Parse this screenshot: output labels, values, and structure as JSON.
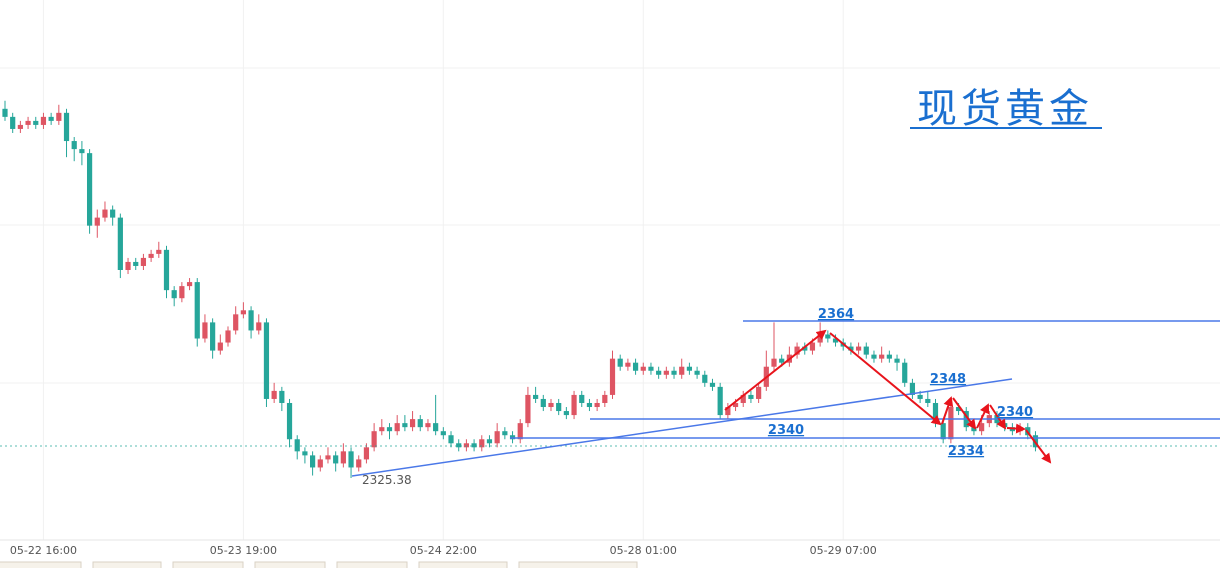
{
  "chart_data": {
    "type": "candlestick",
    "title": "现货黄金",
    "up_color": "#de5563",
    "down_color": "#26a69a",
    "ylim": [
      2310,
      2444
    ],
    "categories": [
      null,
      null,
      null,
      null,
      null,
      "05-22 16:00",
      null,
      null,
      null,
      null,
      null,
      null,
      null,
      null,
      null,
      null,
      null,
      null,
      null,
      null,
      null,
      null,
      null,
      null,
      null,
      null,
      null,
      null,
      null,
      null,
      null,
      "05-23 19:00",
      null,
      null,
      null,
      null,
      null,
      null,
      null,
      null,
      null,
      null,
      null,
      null,
      null,
      null,
      null,
      null,
      null,
      null,
      null,
      null,
      null,
      null,
      null,
      null,
      null,
      "05-24 22:00",
      null,
      null,
      null,
      null,
      null,
      null,
      null,
      null,
      null,
      null,
      null,
      null,
      null,
      null,
      null,
      null,
      null,
      null,
      null,
      null,
      null,
      null,
      null,
      null,
      null,
      "05-28 01:00",
      null,
      null,
      null,
      null,
      null,
      null,
      null,
      null,
      null,
      null,
      null,
      null,
      null,
      null,
      null,
      null,
      null,
      null,
      null,
      null,
      null,
      null,
      null,
      null,
      null,
      "05-29 07:00",
      null,
      null,
      null,
      null,
      null,
      null,
      null,
      null,
      null,
      null,
      null,
      null,
      null,
      null,
      null,
      null,
      null,
      null,
      null,
      null,
      null,
      null,
      null,
      null,
      null
    ],
    "values": [
      [
        2417,
        2419,
        2414,
        2415
      ],
      [
        2415,
        2416,
        2411,
        2412
      ],
      [
        2412,
        2414,
        2411,
        2413
      ],
      [
        2413,
        2415,
        2412,
        2414
      ],
      [
        2414,
        2415,
        2412,
        2413
      ],
      [
        2413,
        2416,
        2412,
        2415
      ],
      [
        2415,
        2416,
        2413,
        2414
      ],
      [
        2414,
        2418,
        2413,
        2416
      ],
      [
        2416,
        2417,
        2405,
        2409
      ],
      [
        2409,
        2410,
        2404,
        2407
      ],
      [
        2407,
        2409,
        2403,
        2406
      ],
      [
        2406,
        2407,
        2386,
        2388
      ],
      [
        2388,
        2392,
        2385,
        2390
      ],
      [
        2390,
        2394,
        2389,
        2392
      ],
      [
        2392,
        2393,
        2388,
        2390
      ],
      [
        2390,
        2391,
        2375,
        2377
      ],
      [
        2377,
        2380,
        2376,
        2379
      ],
      [
        2379,
        2380,
        2377,
        2378
      ],
      [
        2378,
        2381,
        2377,
        2380
      ],
      [
        2380,
        2382,
        2379,
        2381
      ],
      [
        2381,
        2384,
        2380,
        2382
      ],
      [
        2382,
        2383,
        2370,
        2372
      ],
      [
        2372,
        2373,
        2368,
        2370
      ],
      [
        2370,
        2374,
        2369,
        2373
      ],
      [
        2373,
        2375,
        2372,
        2374
      ],
      [
        2374,
        2375,
        2358,
        2360
      ],
      [
        2360,
        2366,
        2359,
        2364
      ],
      [
        2364,
        2365,
        2355,
        2357
      ],
      [
        2357,
        2361,
        2356,
        2359
      ],
      [
        2359,
        2363,
        2358,
        2362
      ],
      [
        2362,
        2368,
        2361,
        2366
      ],
      [
        2366,
        2369,
        2365,
        2367
      ],
      [
        2367,
        2368,
        2360,
        2362
      ],
      [
        2362,
        2366,
        2361,
        2364
      ],
      [
        2364,
        2365,
        2343,
        2345
      ],
      [
        2345,
        2349,
        2344,
        2347
      ],
      [
        2347,
        2348,
        2342,
        2344
      ],
      [
        2344,
        2345,
        2333,
        2335
      ],
      [
        2335,
        2336,
        2330,
        2332
      ],
      [
        2332,
        2333,
        2329,
        2331
      ],
      [
        2331,
        2332,
        2326,
        2328
      ],
      [
        2328,
        2331,
        2327,
        2330
      ],
      [
        2330,
        2333,
        2329,
        2331
      ],
      [
        2331,
        2332,
        2327,
        2329
      ],
      [
        2329,
        2334,
        2328,
        2332
      ],
      [
        2332,
        2333,
        2325.38,
        2328
      ],
      [
        2328,
        2331,
        2327,
        2330
      ],
      [
        2330,
        2334,
        2329,
        2333
      ],
      [
        2333,
        2339,
        2332,
        2337
      ],
      [
        2337,
        2340,
        2336,
        2338
      ],
      [
        2338,
        2339,
        2335,
        2337
      ],
      [
        2337,
        2341,
        2336,
        2339
      ],
      [
        2339,
        2341,
        2337,
        2338
      ],
      [
        2338,
        2342,
        2337,
        2340
      ],
      [
        2340,
        2341,
        2337,
        2338
      ],
      [
        2338,
        2340,
        2337,
        2339
      ],
      [
        2339,
        2346,
        2336,
        2337
      ],
      [
        2337,
        2338,
        2335,
        2336
      ],
      [
        2336,
        2337,
        2333,
        2334
      ],
      [
        2334,
        2335,
        2332,
        2333
      ],
      [
        2333,
        2335,
        2332,
        2334
      ],
      [
        2334,
        2335,
        2332,
        2333
      ],
      [
        2333,
        2336,
        2332,
        2335
      ],
      [
        2335,
        2336,
        2333,
        2334
      ],
      [
        2334,
        2339,
        2333,
        2337
      ],
      [
        2337,
        2338,
        2335,
        2336
      ],
      [
        2336,
        2337,
        2334,
        2335
      ],
      [
        2335,
        2340,
        2334,
        2339
      ],
      [
        2339,
        2348,
        2338,
        2346
      ],
      [
        2346,
        2348,
        2344,
        2345
      ],
      [
        2345,
        2346,
        2342,
        2343
      ],
      [
        2343,
        2345,
        2342,
        2344
      ],
      [
        2344,
        2345,
        2341,
        2342
      ],
      [
        2342,
        2343,
        2340,
        2341
      ],
      [
        2341,
        2347,
        2340,
        2346
      ],
      [
        2346,
        2347,
        2343,
        2344
      ],
      [
        2344,
        2345,
        2342,
        2343
      ],
      [
        2343,
        2345,
        2342,
        2344
      ],
      [
        2344,
        2347,
        2343,
        2346
      ],
      [
        2346,
        2357,
        2345,
        2355
      ],
      [
        2355,
        2356,
        2352,
        2353
      ],
      [
        2353,
        2355,
        2352,
        2354
      ],
      [
        2354,
        2355,
        2351,
        2352
      ],
      [
        2352,
        2354,
        2351,
        2353
      ],
      [
        2353,
        2354,
        2351,
        2352
      ],
      [
        2352,
        2353,
        2350,
        2351
      ],
      [
        2351,
        2353,
        2350,
        2352
      ],
      [
        2352,
        2353,
        2350,
        2351
      ],
      [
        2351,
        2355,
        2350,
        2353
      ],
      [
        2353,
        2354,
        2351,
        2352
      ],
      [
        2352,
        2353,
        2350,
        2351
      ],
      [
        2351,
        2352,
        2348,
        2349
      ],
      [
        2349,
        2350,
        2347,
        2348
      ],
      [
        2348,
        2349,
        2340,
        2341
      ],
      [
        2341,
        2344,
        2340,
        2343
      ],
      [
        2343,
        2345,
        2342,
        2344
      ],
      [
        2344,
        2347,
        2343,
        2346
      ],
      [
        2346,
        2347,
        2344,
        2345
      ],
      [
        2345,
        2349,
        2344,
        2348
      ],
      [
        2348,
        2357,
        2347,
        2353
      ],
      [
        2353,
        2364,
        2352,
        2355
      ],
      [
        2355,
        2356,
        2353,
        2354
      ],
      [
        2354,
        2358,
        2353,
        2356
      ],
      [
        2356,
        2359,
        2355,
        2358
      ],
      [
        2358,
        2359,
        2356,
        2357
      ],
      [
        2357,
        2360,
        2356,
        2359
      ],
      [
        2359,
        2364,
        2358,
        2361
      ],
      [
        2361,
        2362,
        2359,
        2360
      ],
      [
        2360,
        2361,
        2358,
        2359
      ],
      [
        2359,
        2360,
        2357,
        2358
      ],
      [
        2358,
        2359,
        2356,
        2357
      ],
      [
        2357,
        2359,
        2356,
        2358
      ],
      [
        2358,
        2359,
        2355,
        2356
      ],
      [
        2356,
        2357,
        2354,
        2355
      ],
      [
        2355,
        2358,
        2354,
        2356
      ],
      [
        2356,
        2357,
        2354,
        2355
      ],
      [
        2355,
        2356,
        2352,
        2354
      ],
      [
        2354,
        2355,
        2348,
        2349
      ],
      [
        2349,
        2350,
        2345,
        2346
      ],
      [
        2346,
        2347,
        2344,
        2345
      ],
      [
        2345,
        2347,
        2343,
        2344
      ],
      [
        2344,
        2345,
        2338,
        2339
      ],
      [
        2339,
        2340,
        2334,
        2335
      ],
      [
        2335,
        2345,
        2334,
        2343
      ],
      [
        2343,
        2344,
        2341,
        2342
      ],
      [
        2342,
        2343,
        2337,
        2338
      ],
      [
        2338,
        2339,
        2336,
        2337
      ],
      [
        2337,
        2341,
        2336,
        2339
      ],
      [
        2339,
        2342,
        2338,
        2341
      ],
      [
        2341,
        2342,
        2338,
        2339
      ],
      [
        2339,
        2340,
        2337,
        2338
      ],
      [
        2338,
        2339,
        2336,
        2337
      ],
      [
        2337,
        2339,
        2336,
        2338
      ],
      [
        2338,
        2339,
        2335,
        2336
      ],
      [
        2336,
        2337,
        2332,
        2333
      ]
    ],
    "annotations": [
      "2364",
      "2348",
      "2340",
      "2340",
      "2334",
      "2325.38"
    ]
  }
}
